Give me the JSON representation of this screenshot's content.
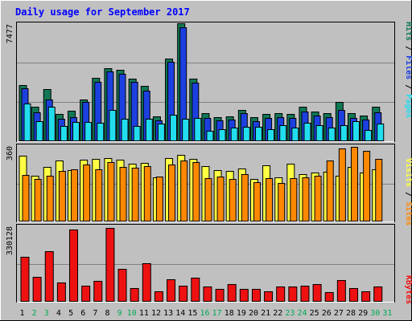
{
  "title": "Daily usage for September 2017",
  "colors": {
    "background": "#c0c0c0",
    "title": "#0000ff",
    "hits": "#117755",
    "files": "#1c40e0",
    "pages": "#22ddee",
    "visits": "#ffff44",
    "sites": "#ff8800",
    "kbytes": "#ee1111"
  },
  "chart_data": [
    {
      "type": "bar",
      "title": "Daily usage for September 2017",
      "categories": [
        "1",
        "2",
        "3",
        "4",
        "5",
        "6",
        "7",
        "8",
        "9",
        "10",
        "11",
        "12",
        "13",
        "14",
        "15",
        "16",
        "17",
        "18",
        "19",
        "20",
        "21",
        "22",
        "23",
        "24",
        "25",
        "26",
        "27",
        "28",
        "29",
        "30",
        "31"
      ],
      "weekend_days": [
        "2",
        "3",
        "9",
        "10",
        "16",
        "17",
        "23",
        "24",
        "30",
        "31"
      ],
      "ylabel_right": [
        "Pages",
        "Files",
        "Hits"
      ],
      "ymax_label": "7477",
      "ylim": [
        0,
        7477
      ],
      "series": [
        {
          "name": "Hits",
          "values": [
            3530,
            2140,
            3280,
            1700,
            1920,
            2620,
            4010,
            4630,
            4500,
            3930,
            3500,
            1520,
            5220,
            7477,
            3930,
            1720,
            1510,
            1560,
            1960,
            1460,
            1670,
            1720,
            1690,
            2170,
            1860,
            1720,
            2440,
            1720,
            1570,
            2130,
            0
          ]
        },
        {
          "name": "Files",
          "values": [
            3310,
            1790,
            2620,
            1400,
            1510,
            2450,
            3740,
            4390,
            4260,
            3720,
            3150,
            1270,
            5000,
            7230,
            3700,
            1450,
            1300,
            1330,
            1720,
            1230,
            1450,
            1480,
            1450,
            1860,
            1610,
            1470,
            1960,
            1450,
            1350,
            1770,
            0
          ]
        },
        {
          "name": "Pages",
          "values": [
            2380,
            1220,
            2150,
            900,
            1190,
            1200,
            1120,
            1970,
            1370,
            940,
            1360,
            1100,
            1650,
            1390,
            1440,
            630,
            720,
            810,
            850,
            860,
            730,
            970,
            810,
            1140,
            990,
            830,
            990,
            1220,
            690,
            1070,
            0
          ]
        }
      ]
    },
    {
      "type": "bar",
      "ylabel_right": [
        "Sites",
        "Visits"
      ],
      "ymax_label": "360",
      "ylim": [
        0,
        360
      ],
      "series": [
        {
          "name": "Visits",
          "values": [
            318,
            220,
            262,
            295,
            248,
            298,
            302,
            306,
            298,
            277,
            283,
            210,
            305,
            320,
            300,
            268,
            247,
            242,
            253,
            204,
            271,
            210,
            278,
            226,
            234,
            240,
            221,
            263,
            235,
            251,
            0
          ]
        },
        {
          "name": "Sites",
          "values": [
            224,
            204,
            220,
            243,
            250,
            272,
            252,
            286,
            263,
            258,
            268,
            214,
            272,
            294,
            284,
            209,
            216,
            203,
            226,
            189,
            208,
            182,
            209,
            210,
            218,
            294,
            352,
            360,
            339,
            303,
            0
          ]
        }
      ]
    },
    {
      "type": "bar",
      "ylabel_right": [
        "KBytes"
      ],
      "ymax_label": "330128",
      "ylim": [
        0,
        330128
      ],
      "values": [
        199000,
        110000,
        224000,
        85000,
        322000,
        70000,
        91000,
        330128,
        145000,
        57000,
        170000,
        42000,
        98000,
        70000,
        106000,
        65000,
        56000,
        76000,
        55000,
        53000,
        45000,
        66000,
        65000,
        70000,
        75000,
        41000,
        93000,
        59000,
        42000,
        66000,
        0
      ]
    }
  ]
}
